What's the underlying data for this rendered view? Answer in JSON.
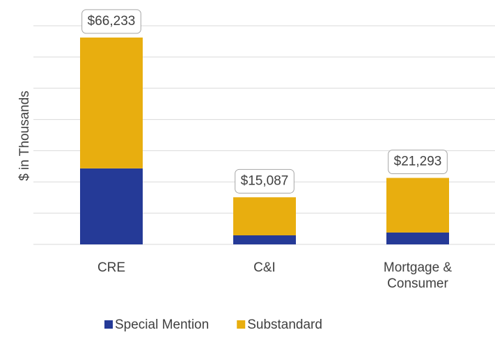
{
  "chart_data": {
    "type": "stacked_bar",
    "y_label": "$ in Thousands",
    "categories": [
      "CRE",
      "C&I",
      "Mortgage & Consumer"
    ],
    "series": [
      {
        "name": "Special Mention",
        "color": "#253a97",
        "values": [
          24330,
          2900,
          3800
        ]
      },
      {
        "name": "Substandard",
        "color": "#e8ae0f",
        "values": [
          41903,
          12187,
          17493
        ]
      }
    ],
    "totals": [
      66233,
      15087,
      21293
    ],
    "total_labels": [
      "$66,233",
      "$15,087",
      "$21,293"
    ],
    "ylim": [
      0,
      70000
    ],
    "yticks": [
      0,
      10000,
      20000,
      30000,
      40000,
      50000,
      60000,
      70000
    ],
    "grid": true
  }
}
